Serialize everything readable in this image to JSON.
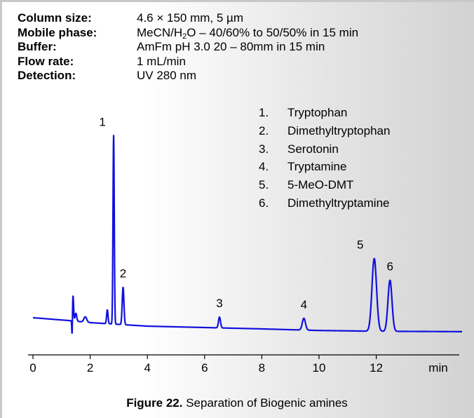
{
  "conditions": [
    {
      "label": "Column size:",
      "value": "4.6 × 150 mm, 5 µm"
    },
    {
      "label": "Mobile phase:",
      "value_prefix": "MeCN/H",
      "value_sub": "2",
      "value_suffix": "O – 40/60% to 50/50% in 15 min"
    },
    {
      "label": "Buffer:",
      "value": "AmFm pH 3.0  20 – 80mm in 15 min"
    },
    {
      "label": "Flow rate:",
      "value": "1 mL/min"
    },
    {
      "label": "Detection:",
      "value": "UV 280 nm"
    }
  ],
  "legend": [
    {
      "num": "1.",
      "name": "Tryptophan"
    },
    {
      "num": "2.",
      "name": "Dimethyltryptophan"
    },
    {
      "num": "3.",
      "name": "Serotonin"
    },
    {
      "num": "4.",
      "name": "Tryptamine"
    },
    {
      "num": "5.",
      "name": "5-MeO-DMT"
    },
    {
      "num": "6.",
      "name": "Dimethyltryptamine"
    }
  ],
  "caption": {
    "bold": "Figure 22.",
    "text": " Separation of Biogenic amines"
  },
  "colors": {
    "trace": "#1010e0",
    "axis": "#000000",
    "background_left": "#ffffff",
    "background_right": "#d2d2d2"
  },
  "chart_data": {
    "type": "line",
    "xlabel": "min",
    "xlim": [
      0,
      15
    ],
    "xticks": [
      0,
      2,
      4,
      6,
      8,
      10,
      12
    ],
    "ylim": [
      0,
      1
    ],
    "grid": false,
    "series": [
      {
        "baseline": [
          [
            0,
            0.075
          ],
          [
            1.3,
            0.06
          ],
          [
            2.0,
            0.05
          ],
          [
            4.0,
            0.032
          ],
          [
            6.0,
            0.025
          ],
          [
            8.0,
            0.018
          ],
          [
            10.0,
            0.01
          ],
          [
            12.0,
            0.006
          ],
          [
            15.0,
            0.004
          ]
        ],
        "peaks": [
          {
            "label": "",
            "rt": 1.37,
            "height": -0.1,
            "width": 0.012
          },
          {
            "label": "",
            "rt": 1.4,
            "height": 0.13,
            "width": 0.02
          },
          {
            "label": "",
            "rt": 1.5,
            "height": 0.04,
            "width": 0.03
          },
          {
            "label": "",
            "rt": 1.83,
            "height": 0.027,
            "width": 0.05
          },
          {
            "label": "",
            "rt": 2.6,
            "height": 0.07,
            "width": 0.025
          },
          {
            "label": "1",
            "rt": 2.82,
            "height": 0.96,
            "width": 0.022
          },
          {
            "label": "2",
            "rt": 3.15,
            "height": 0.19,
            "width": 0.03
          },
          {
            "label": "3",
            "rt": 6.52,
            "height": 0.055,
            "width": 0.035
          },
          {
            "label": "4",
            "rt": 9.47,
            "height": 0.06,
            "width": 0.055
          },
          {
            "label": "5",
            "rt": 11.93,
            "height": 0.37,
            "width": 0.08
          },
          {
            "label": "6",
            "rt": 12.48,
            "height": 0.26,
            "width": 0.07
          }
        ]
      }
    ]
  }
}
